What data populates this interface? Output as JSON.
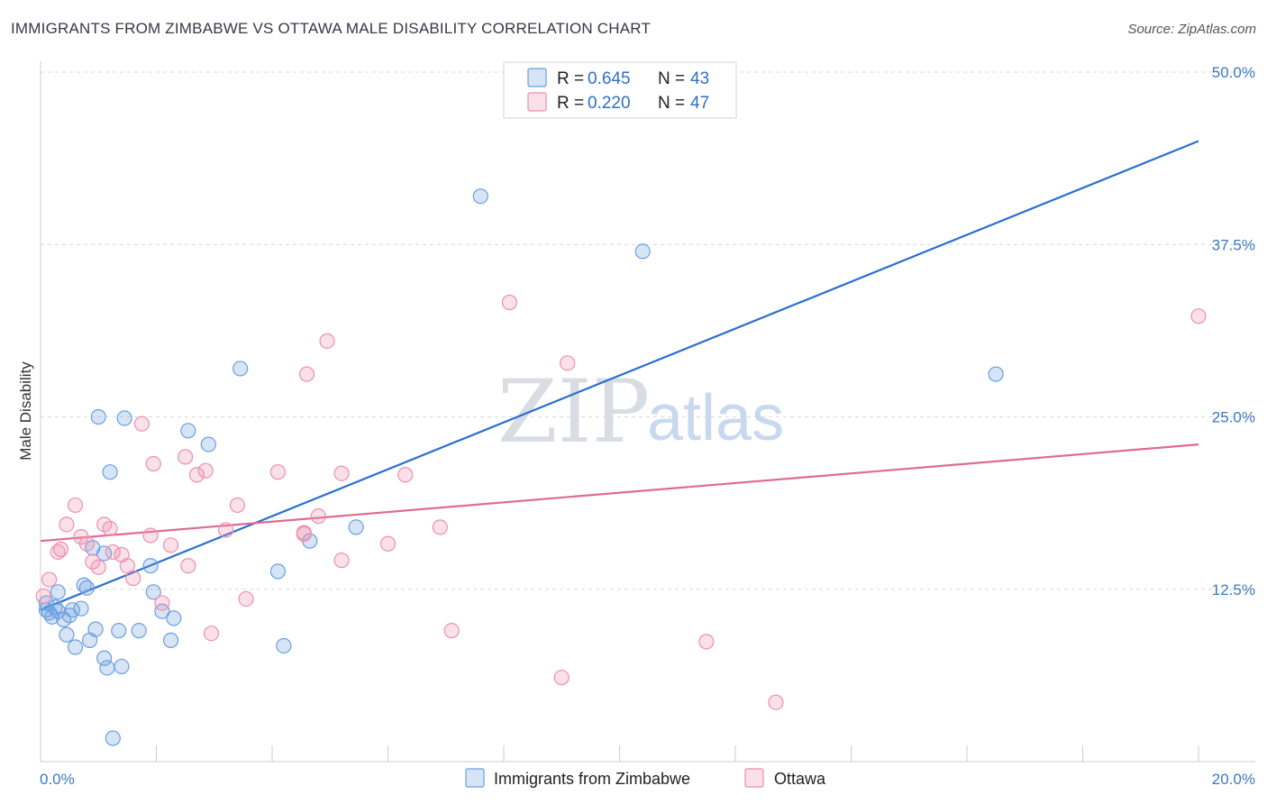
{
  "title": "IMMIGRANTS FROM ZIMBABWE VS OTTAWA MALE DISABILITY CORRELATION CHART",
  "source": "Source: ZipAtlas.com",
  "watermark": {
    "part1": "ZIP",
    "part2": "atlas"
  },
  "colors": {
    "blue": "#6a9fe0",
    "blue_fill": "rgba(106,159,224,0.28)",
    "blue_line": "#2a6fd0",
    "pink": "#ec8fb0",
    "pink_fill": "rgba(236,143,176,0.28)",
    "pink_line": "#e06a94",
    "grid": "#d8d8d8",
    "tick_label": "#3b78c4"
  },
  "legend": {
    "rows": [
      {
        "r_label": "R = ",
        "r_value": "0.645",
        "n_label": "N = ",
        "n_value": "43"
      },
      {
        "r_label": "R = ",
        "r_value": "0.220",
        "n_label": "N = ",
        "n_value": "47"
      }
    ]
  },
  "chart_data": {
    "type": "scatter",
    "title": "IMMIGRANTS FROM ZIMBABWE VS OTTAWA MALE DISABILITY CORRELATION CHART",
    "xlabel": "",
    "ylabel": "Male Disability",
    "xlim": [
      0,
      20
    ],
    "ylim": [
      0,
      50
    ],
    "x_tick_labels": [
      "0.0%",
      "20.0%"
    ],
    "y_ticks": [
      12.5,
      25.0,
      37.5,
      50.0
    ],
    "y_tick_labels": [
      "12.5%",
      "25.0%",
      "37.5%",
      "50.0%"
    ],
    "grid": true,
    "legend_position": "top-center",
    "series": [
      {
        "name": "Immigrants from Zimbabwe",
        "color": "#6a9fe0",
        "trend": {
          "x": [
            0,
            20
          ],
          "y": [
            11.0,
            45.0
          ]
        },
        "points": [
          [
            0.1,
            11.5
          ],
          [
            0.1,
            11.0
          ],
          [
            0.15,
            10.8
          ],
          [
            0.2,
            10.5
          ],
          [
            0.25,
            11.2
          ],
          [
            0.3,
            10.9
          ],
          [
            0.3,
            12.3
          ],
          [
            0.4,
            10.3
          ],
          [
            0.45,
            9.2
          ],
          [
            0.5,
            10.6
          ],
          [
            0.55,
            11.0
          ],
          [
            0.6,
            8.3
          ],
          [
            0.7,
            11.1
          ],
          [
            0.75,
            12.8
          ],
          [
            0.8,
            12.6
          ],
          [
            0.85,
            8.8
          ],
          [
            0.9,
            15.5
          ],
          [
            0.95,
            9.6
          ],
          [
            1.0,
            25.0
          ],
          [
            1.1,
            15.1
          ],
          [
            1.1,
            7.5
          ],
          [
            1.15,
            6.8
          ],
          [
            1.2,
            21.0
          ],
          [
            1.25,
            1.7
          ],
          [
            1.35,
            9.5
          ],
          [
            1.4,
            6.9
          ],
          [
            1.45,
            24.9
          ],
          [
            1.7,
            9.5
          ],
          [
            1.9,
            14.2
          ],
          [
            1.95,
            12.3
          ],
          [
            2.1,
            10.9
          ],
          [
            2.25,
            8.8
          ],
          [
            2.3,
            10.4
          ],
          [
            2.55,
            24.0
          ],
          [
            2.9,
            23.0
          ],
          [
            3.45,
            28.5
          ],
          [
            4.1,
            13.8
          ],
          [
            4.2,
            8.4
          ],
          [
            4.65,
            16.0
          ],
          [
            5.45,
            17.0
          ],
          [
            7.6,
            41.0
          ],
          [
            10.4,
            37.0
          ],
          [
            16.5,
            28.1
          ]
        ]
      },
      {
        "name": "Ottawa",
        "color": "#ec8fb0",
        "trend": {
          "x": [
            0,
            20
          ],
          "y": [
            16.0,
            23.0
          ]
        },
        "points": [
          [
            0.05,
            12.0
          ],
          [
            0.15,
            13.2
          ],
          [
            0.3,
            15.2
          ],
          [
            0.35,
            15.4
          ],
          [
            0.45,
            17.2
          ],
          [
            0.6,
            18.6
          ],
          [
            0.7,
            16.3
          ],
          [
            0.8,
            15.8
          ],
          [
            0.9,
            14.5
          ],
          [
            1.0,
            14.1
          ],
          [
            1.1,
            17.2
          ],
          [
            1.2,
            16.9
          ],
          [
            1.25,
            15.2
          ],
          [
            1.4,
            15.0
          ],
          [
            1.5,
            14.2
          ],
          [
            1.6,
            13.3
          ],
          [
            1.75,
            24.5
          ],
          [
            1.9,
            16.4
          ],
          [
            1.95,
            21.6
          ],
          [
            2.1,
            11.5
          ],
          [
            2.25,
            15.7
          ],
          [
            2.5,
            22.1
          ],
          [
            2.55,
            14.2
          ],
          [
            2.7,
            20.8
          ],
          [
            2.85,
            21.1
          ],
          [
            2.95,
            9.3
          ],
          [
            3.2,
            16.8
          ],
          [
            3.4,
            18.6
          ],
          [
            3.55,
            11.8
          ],
          [
            4.1,
            21.0
          ],
          [
            4.55,
            16.5
          ],
          [
            4.6,
            28.1
          ],
          [
            4.8,
            17.8
          ],
          [
            4.95,
            30.5
          ],
          [
            5.2,
            14.6
          ],
          [
            5.2,
            20.9
          ],
          [
            6.0,
            15.8
          ],
          [
            6.3,
            20.8
          ],
          [
            6.9,
            17.0
          ],
          [
            7.1,
            9.5
          ],
          [
            8.1,
            33.3
          ],
          [
            9.0,
            6.1
          ],
          [
            9.1,
            28.9
          ],
          [
            11.5,
            8.7
          ],
          [
            12.7,
            4.3
          ],
          [
            20.0,
            32.3
          ],
          [
            4.55,
            16.6
          ]
        ]
      }
    ]
  }
}
